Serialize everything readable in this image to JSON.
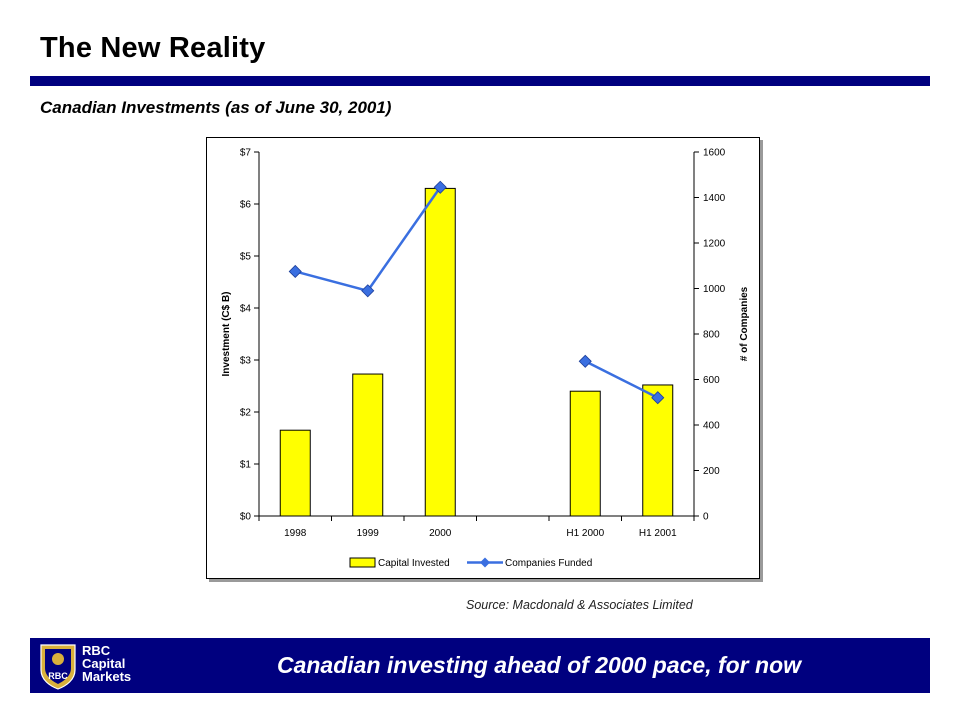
{
  "header": {
    "title": "The New Reality",
    "subtitle": "Canadian Investments (as of June 30, 2001)"
  },
  "source_note": "Source: Macdonald & Associates Limited",
  "footer": {
    "tagline": "Canadian investing ahead of 2000 pace, for now",
    "logo": {
      "line1": "RBC",
      "line2": "Capital",
      "line3": "Markets",
      "badge": "RBC"
    }
  },
  "colors": {
    "brand_navy": "#00007f",
    "bar_fill": "#ffff00",
    "line_color": "#3a6fe0",
    "logo_gold": "#d9b03c"
  },
  "chart_data": {
    "type": "bar",
    "categories": [
      "1998",
      "1999",
      "2000",
      "",
      "H1  2000",
      "H1  2001"
    ],
    "series": [
      {
        "name": "Capital Invested",
        "type": "bar",
        "axis": "left",
        "values": [
          1.65,
          2.73,
          6.3,
          null,
          2.4,
          2.52
        ]
      },
      {
        "name": "Companies Funded",
        "type": "line",
        "axis": "right",
        "values": [
          1075,
          990,
          1445,
          null,
          680,
          520
        ]
      }
    ],
    "y_left": {
      "label": "Investment (C$ B)",
      "ylim": [
        0,
        7
      ],
      "ticks": [
        0,
        1,
        2,
        3,
        4,
        5,
        6,
        7
      ],
      "tick_labels": [
        "$0",
        "$1",
        "$2",
        "$3",
        "$4",
        "$5",
        "$6",
        "$7"
      ]
    },
    "y_right": {
      "label": "# of Companies",
      "ylim": [
        0,
        1600
      ],
      "ticks": [
        0,
        200,
        400,
        600,
        800,
        1000,
        1200,
        1400,
        1600
      ],
      "tick_labels": [
        "0",
        "200",
        "400",
        "600",
        "800",
        "1000",
        "1200",
        "1400",
        "1600"
      ]
    },
    "legend": {
      "placement": "bottom",
      "entries": [
        "Capital Invested",
        "Companies Funded"
      ]
    },
    "grid": false
  }
}
